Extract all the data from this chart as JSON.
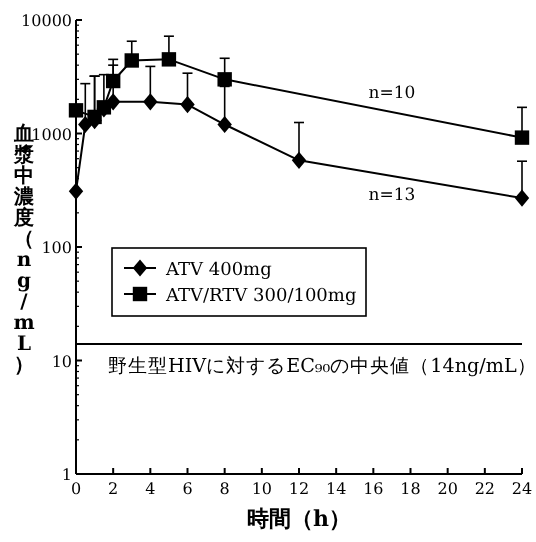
{
  "chart_data": {
    "type": "line",
    "xlabel": "時間（h）",
    "ylabel": "血漿中濃度（ng/mL）",
    "log": "y",
    "xlim": [
      0,
      24
    ],
    "xticks": [
      0,
      2,
      4,
      6,
      8,
      10,
      12,
      14,
      16,
      18,
      20,
      22,
      24
    ],
    "ylim": [
      1,
      10000
    ],
    "yticks": [
      1,
      10,
      100,
      1000,
      10000
    ],
    "grid": false,
    "legend": "left",
    "line_style": "solid",
    "series": [
      {
        "name": "ATV 400mg",
        "color": "#000000",
        "marker": "diamond",
        "x": [
          0,
          0.5,
          1,
          1.5,
          2,
          4,
          6,
          8,
          12,
          24
        ],
        "values": [
          310,
          1200,
          1300,
          1650,
          1900,
          1900,
          1800,
          1200,
          580,
          270
        ],
        "errors": [
          null,
          [
            1200,
            2750
          ],
          [
            1300,
            3200
          ],
          [
            1650,
            3300
          ],
          [
            1900,
            4000
          ],
          [
            1900,
            3900
          ],
          [
            1800,
            3400
          ],
          [
            1200,
            2600
          ],
          [
            580,
            1250
          ],
          [
            270,
            570
          ]
        ]
      },
      {
        "name": "ATV/RTV 300/100mg",
        "color": "#000000",
        "marker": "square",
        "x": [
          0,
          1,
          1.5,
          2,
          3,
          5,
          8,
          24
        ],
        "values": [
          1600,
          1400,
          1700,
          2900,
          4400,
          4500,
          3000,
          920
        ],
        "errors": [
          null,
          [
            1400,
            3200
          ],
          null,
          [
            2900,
            4500
          ],
          [
            4400,
            6500
          ],
          [
            4500,
            7200
          ],
          [
            3000,
            4600
          ],
          [
            920,
            1700
          ]
        ]
      }
    ],
    "ref_lines": [
      {
        "axis": "y",
        "value": 14,
        "label": "野生型HIVに対するEC₉₀の中央値（14ng/mL）",
        "color": "#000000",
        "line_style": "solid"
      }
    ],
    "annotations": [
      "n=10",
      "n=13"
    ]
  }
}
